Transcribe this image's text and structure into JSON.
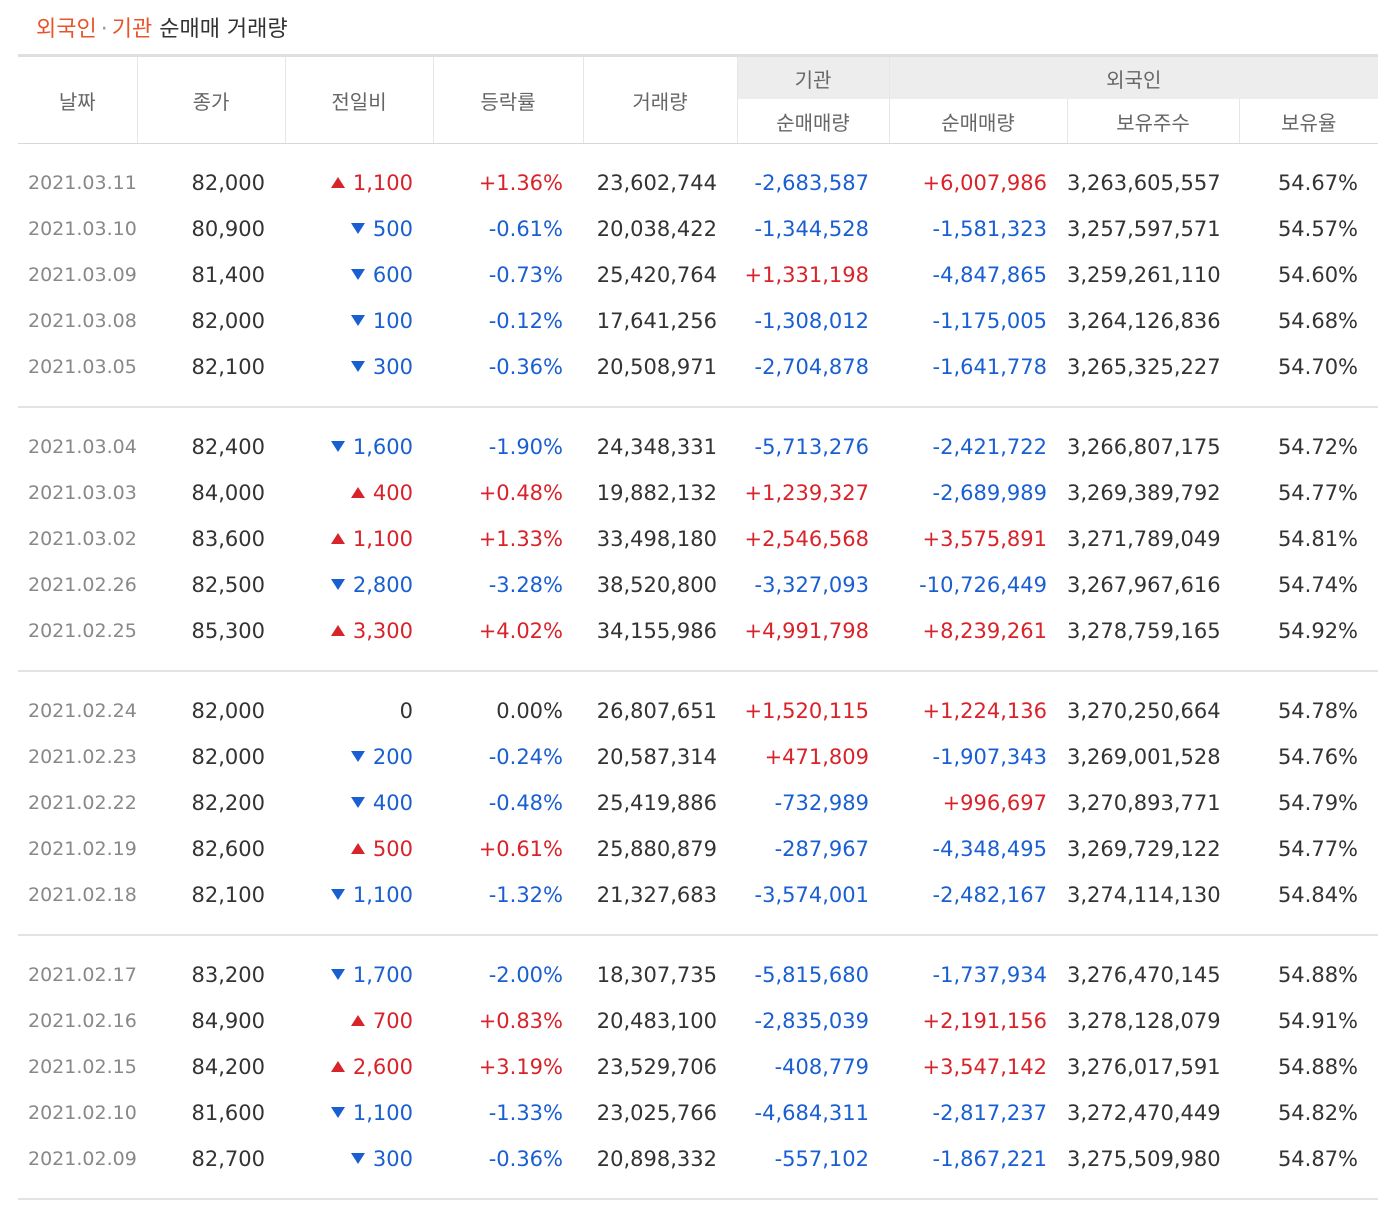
{
  "title": {
    "part1": "외국인",
    "sep": "·",
    "part2": "기관",
    "rest": "순매매 거래량"
  },
  "headers": {
    "date": "날짜",
    "close": "종가",
    "change": "전일비",
    "rate": "등락률",
    "volume": "거래량",
    "inst_group": "기관",
    "inst_net": "순매매량",
    "foreign_group": "외국인",
    "foreign_net": "순매매량",
    "foreign_holdings": "보유주수",
    "foreign_ratio": "보유율"
  },
  "colors": {
    "up": "#d8232a",
    "down": "#1a5fd1",
    "accent": "#e8552c"
  },
  "groups": [
    [
      {
        "date": "2021.03.11",
        "close": "82,000",
        "dir": "up",
        "change": "1,100",
        "rate": "+1.36%",
        "volume": "23,602,744",
        "inst": "-2,683,587",
        "foreign": "+6,007,986",
        "holdings": "3,263,605,557",
        "ratio": "54.67%"
      },
      {
        "date": "2021.03.10",
        "close": "80,900",
        "dir": "down",
        "change": "500",
        "rate": "-0.61%",
        "volume": "20,038,422",
        "inst": "-1,344,528",
        "foreign": "-1,581,323",
        "holdings": "3,257,597,571",
        "ratio": "54.57%"
      },
      {
        "date": "2021.03.09",
        "close": "81,400",
        "dir": "down",
        "change": "600",
        "rate": "-0.73%",
        "volume": "25,420,764",
        "inst": "+1,331,198",
        "foreign": "-4,847,865",
        "holdings": "3,259,261,110",
        "ratio": "54.60%"
      },
      {
        "date": "2021.03.08",
        "close": "82,000",
        "dir": "down",
        "change": "100",
        "rate": "-0.12%",
        "volume": "17,641,256",
        "inst": "-1,308,012",
        "foreign": "-1,175,005",
        "holdings": "3,264,126,836",
        "ratio": "54.68%"
      },
      {
        "date": "2021.03.05",
        "close": "82,100",
        "dir": "down",
        "change": "300",
        "rate": "-0.36%",
        "volume": "20,508,971",
        "inst": "-2,704,878",
        "foreign": "-1,641,778",
        "holdings": "3,265,325,227",
        "ratio": "54.70%"
      }
    ],
    [
      {
        "date": "2021.03.04",
        "close": "82,400",
        "dir": "down",
        "change": "1,600",
        "rate": "-1.90%",
        "volume": "24,348,331",
        "inst": "-5,713,276",
        "foreign": "-2,421,722",
        "holdings": "3,266,807,175",
        "ratio": "54.72%"
      },
      {
        "date": "2021.03.03",
        "close": "84,000",
        "dir": "up",
        "change": "400",
        "rate": "+0.48%",
        "volume": "19,882,132",
        "inst": "+1,239,327",
        "foreign": "-2,689,989",
        "holdings": "3,269,389,792",
        "ratio": "54.77%"
      },
      {
        "date": "2021.03.02",
        "close": "83,600",
        "dir": "up",
        "change": "1,100",
        "rate": "+1.33%",
        "volume": "33,498,180",
        "inst": "+2,546,568",
        "foreign": "+3,575,891",
        "holdings": "3,271,789,049",
        "ratio": "54.81%"
      },
      {
        "date": "2021.02.26",
        "close": "82,500",
        "dir": "down",
        "change": "2,800",
        "rate": "-3.28%",
        "volume": "38,520,800",
        "inst": "-3,327,093",
        "foreign": "-10,726,449",
        "holdings": "3,267,967,616",
        "ratio": "54.74%"
      },
      {
        "date": "2021.02.25",
        "close": "85,300",
        "dir": "up",
        "change": "3,300",
        "rate": "+4.02%",
        "volume": "34,155,986",
        "inst": "+4,991,798",
        "foreign": "+8,239,261",
        "holdings": "3,278,759,165",
        "ratio": "54.92%"
      }
    ],
    [
      {
        "date": "2021.02.24",
        "close": "82,000",
        "dir": "none",
        "change": "0",
        "rate": "0.00%",
        "volume": "26,807,651",
        "inst": "+1,520,115",
        "foreign": "+1,224,136",
        "holdings": "3,270,250,664",
        "ratio": "54.78%"
      },
      {
        "date": "2021.02.23",
        "close": "82,000",
        "dir": "down",
        "change": "200",
        "rate": "-0.24%",
        "volume": "20,587,314",
        "inst": "+471,809",
        "foreign": "-1,907,343",
        "holdings": "3,269,001,528",
        "ratio": "54.76%"
      },
      {
        "date": "2021.02.22",
        "close": "82,200",
        "dir": "down",
        "change": "400",
        "rate": "-0.48%",
        "volume": "25,419,886",
        "inst": "-732,989",
        "foreign": "+996,697",
        "holdings": "3,270,893,771",
        "ratio": "54.79%"
      },
      {
        "date": "2021.02.19",
        "close": "82,600",
        "dir": "up",
        "change": "500",
        "rate": "+0.61%",
        "volume": "25,880,879",
        "inst": "-287,967",
        "foreign": "-4,348,495",
        "holdings": "3,269,729,122",
        "ratio": "54.77%"
      },
      {
        "date": "2021.02.18",
        "close": "82,100",
        "dir": "down",
        "change": "1,100",
        "rate": "-1.32%",
        "volume": "21,327,683",
        "inst": "-3,574,001",
        "foreign": "-2,482,167",
        "holdings": "3,274,114,130",
        "ratio": "54.84%"
      }
    ],
    [
      {
        "date": "2021.02.17",
        "close": "83,200",
        "dir": "down",
        "change": "1,700",
        "rate": "-2.00%",
        "volume": "18,307,735",
        "inst": "-5,815,680",
        "foreign": "-1,737,934",
        "holdings": "3,276,470,145",
        "ratio": "54.88%"
      },
      {
        "date": "2021.02.16",
        "close": "84,900",
        "dir": "up",
        "change": "700",
        "rate": "+0.83%",
        "volume": "20,483,100",
        "inst": "-2,835,039",
        "foreign": "+2,191,156",
        "holdings": "3,278,128,079",
        "ratio": "54.91%"
      },
      {
        "date": "2021.02.15",
        "close": "84,200",
        "dir": "up",
        "change": "2,600",
        "rate": "+3.19%",
        "volume": "23,529,706",
        "inst": "-408,779",
        "foreign": "+3,547,142",
        "holdings": "3,276,017,591",
        "ratio": "54.88%"
      },
      {
        "date": "2021.02.10",
        "close": "81,600",
        "dir": "down",
        "change": "1,100",
        "rate": "-1.33%",
        "volume": "23,025,766",
        "inst": "-4,684,311",
        "foreign": "-2,817,237",
        "holdings": "3,272,470,449",
        "ratio": "54.82%"
      },
      {
        "date": "2021.02.09",
        "close": "82,700",
        "dir": "down",
        "change": "300",
        "rate": "-0.36%",
        "volume": "20,898,332",
        "inst": "-557,102",
        "foreign": "-1,867,221",
        "holdings": "3,275,509,980",
        "ratio": "54.87%"
      }
    ]
  ]
}
